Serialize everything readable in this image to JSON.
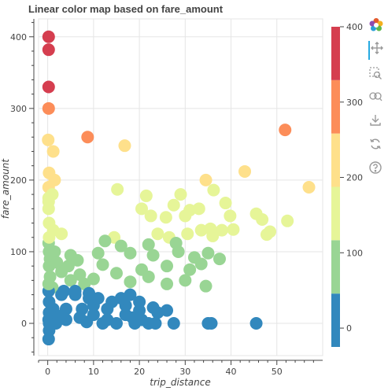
{
  "chart_data": {
    "type": "scatter",
    "title": "Linear color map based on fare_amount",
    "xlabel": "trip_distance",
    "ylabel": "fare_amount",
    "xlim": [
      -2,
      60
    ],
    "ylim": [
      -45,
      425
    ],
    "x_ticks": [
      0,
      10,
      20,
      30,
      40,
      50
    ],
    "y_ticks": [
      0,
      100,
      200,
      300,
      400
    ],
    "grid": true,
    "colorbar": {
      "range": [
        -25,
        400
      ],
      "ticks": [
        0,
        100,
        200,
        300,
        400
      ],
      "colors": [
        "#3288bd",
        "#99d594",
        "#e6f598",
        "#fee08b",
        "#fc8d59",
        "#d53e4f"
      ],
      "placement": "right"
    },
    "points": [
      [
        0.2,
        400
      ],
      [
        0.2,
        382
      ],
      [
        0.2,
        330
      ],
      [
        0.2,
        300
      ],
      [
        8.7,
        260
      ],
      [
        51.8,
        270
      ],
      [
        0.1,
        256
      ],
      [
        1.2,
        240
      ],
      [
        16.8,
        248
      ],
      [
        0.3,
        210
      ],
      [
        1.5,
        200
      ],
      [
        34.5,
        200
      ],
      [
        43,
        212
      ],
      [
        57,
        190
      ],
      [
        15.2,
        187
      ],
      [
        0.2,
        190
      ],
      [
        36.2,
        186
      ],
      [
        21.5,
        178
      ],
      [
        29,
        180
      ],
      [
        38.8,
        168
      ],
      [
        0.2,
        175
      ],
      [
        20.5,
        160
      ],
      [
        27.5,
        165
      ],
      [
        31,
        158
      ],
      [
        33,
        160
      ],
      [
        22.5,
        150
      ],
      [
        25.8,
        148
      ],
      [
        30,
        150
      ],
      [
        39.8,
        150
      ],
      [
        45.5,
        153
      ],
      [
        46.8,
        145
      ],
      [
        52.3,
        143
      ],
      [
        48.5,
        128
      ],
      [
        47.8,
        124
      ],
      [
        0.2,
        160
      ],
      [
        0.3,
        140
      ],
      [
        1.2,
        130
      ],
      [
        3,
        125
      ],
      [
        14.5,
        120
      ],
      [
        24,
        125
      ],
      [
        26.5,
        120
      ],
      [
        30.5,
        125
      ],
      [
        33.5,
        130
      ],
      [
        35.5,
        132
      ],
      [
        38,
        130
      ],
      [
        40.5,
        131
      ],
      [
        36,
        122
      ],
      [
        28,
        112
      ],
      [
        22,
        110
      ],
      [
        16,
        108
      ],
      [
        12.5,
        115
      ],
      [
        0.2,
        112
      ],
      [
        1.5,
        100
      ],
      [
        5,
        95
      ],
      [
        11,
        98
      ],
      [
        18,
        98
      ],
      [
        23,
        95
      ],
      [
        28.5,
        100
      ],
      [
        32,
        92
      ],
      [
        35,
        98
      ],
      [
        31,
        75
      ],
      [
        33.5,
        83
      ],
      [
        37.5,
        90
      ],
      [
        34.5,
        52
      ],
      [
        20.5,
        75
      ],
      [
        26,
        80
      ],
      [
        12,
        82
      ],
      [
        7,
        68
      ],
      [
        3,
        72
      ],
      [
        0.3,
        80
      ],
      [
        15,
        70
      ],
      [
        8,
        55
      ],
      [
        5,
        60
      ],
      [
        10,
        62
      ],
      [
        18,
        58
      ],
      [
        22,
        65
      ],
      [
        30,
        60
      ],
      [
        26,
        55
      ],
      [
        1,
        50
      ],
      [
        0.5,
        65
      ],
      [
        3.5,
        45
      ],
      [
        6,
        40
      ],
      [
        9,
        35
      ],
      [
        14,
        30
      ],
      [
        17,
        25
      ],
      [
        20,
        18
      ],
      [
        24,
        15
      ],
      [
        0.3,
        30
      ],
      [
        1.2,
        20
      ],
      [
        2.5,
        10
      ],
      [
        4,
        5
      ],
      [
        7,
        8
      ],
      [
        10,
        12
      ],
      [
        13,
        20
      ],
      [
        16,
        35
      ],
      [
        18,
        40
      ],
      [
        20,
        30
      ],
      [
        23,
        22
      ],
      [
        26,
        18
      ],
      [
        10,
        25
      ],
      [
        19,
        0
      ],
      [
        22,
        0
      ],
      [
        23.5,
        0
      ],
      [
        27.5,
        0
      ],
      [
        35,
        0
      ],
      [
        35.7,
        0
      ],
      [
        45.5,
        0
      ],
      [
        15,
        0
      ],
      [
        12,
        0
      ],
      [
        18.5,
        8
      ],
      [
        20.5,
        5
      ],
      [
        11,
        35
      ],
      [
        9,
        42
      ],
      [
        6,
        45
      ],
      [
        3,
        40
      ],
      [
        0.2,
        45
      ],
      [
        0.3,
        15
      ],
      [
        0.2,
        5
      ],
      [
        0.3,
        0
      ],
      [
        0.3,
        -10
      ],
      [
        0.2,
        -22
      ],
      [
        8.5,
        2
      ],
      [
        1.8,
        0
      ],
      [
        4,
        20
      ],
      [
        7.5,
        20
      ],
      [
        13,
        5
      ],
      [
        17,
        12
      ],
      [
        0.2,
        55
      ],
      [
        0.5,
        90
      ],
      [
        0.3,
        100
      ],
      [
        2,
        85
      ],
      [
        4.5,
        80
      ],
      [
        6.5,
        88
      ],
      [
        0.3,
        120
      ],
      [
        0.2,
        170
      ],
      [
        1,
        180
      ]
    ]
  }
}
